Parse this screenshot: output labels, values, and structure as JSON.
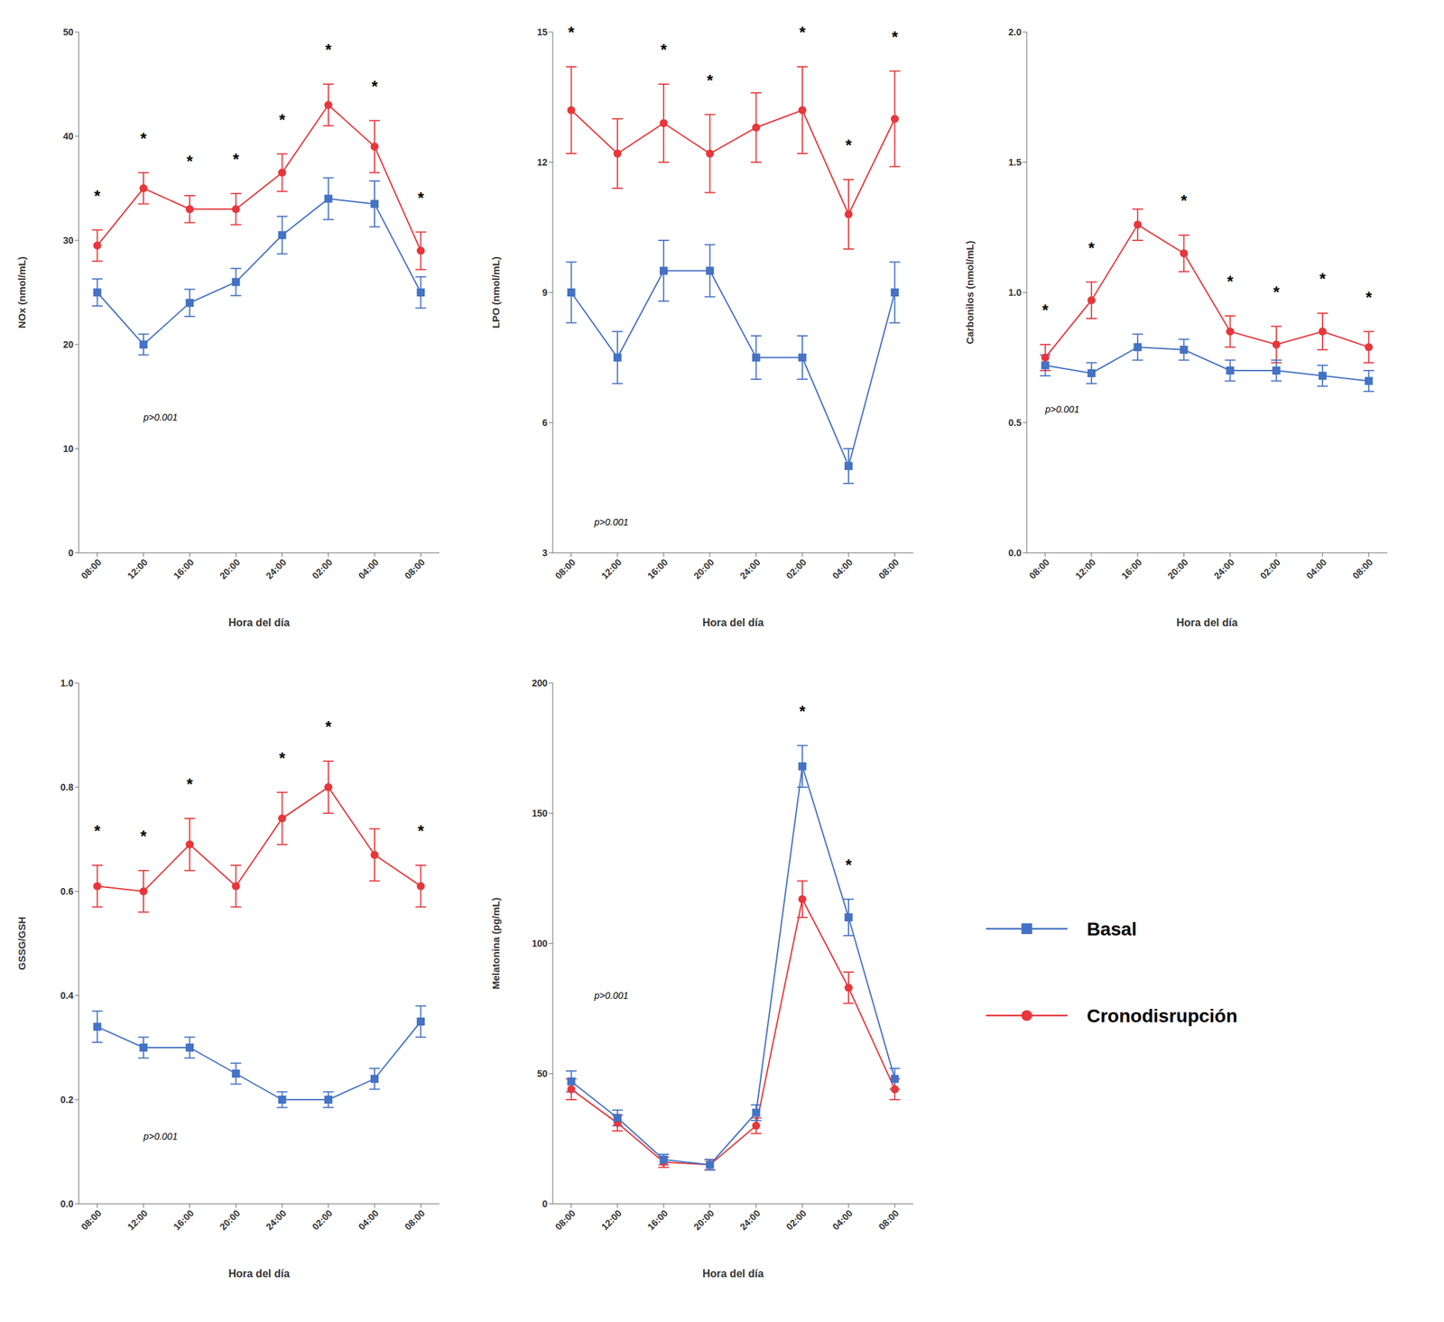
{
  "chart_data": [
    {
      "type": "line",
      "categories": [
        "08:00",
        "12:00",
        "16:00",
        "20:00",
        "24:00",
        "02:00",
        "04:00",
        "08:00"
      ],
      "xlabel": "Hora del día",
      "ylabel": "NOx (nmol/mL)",
      "ylim": [
        0,
        50
      ],
      "yticks": [
        0,
        10,
        20,
        30,
        40,
        50
      ],
      "grid": false,
      "series": [
        {
          "name": "Basal",
          "color": "#4472C4",
          "marker": "square",
          "values": [
            25,
            20,
            24,
            26,
            30.5,
            34,
            33.5,
            25
          ],
          "errors": [
            1.3,
            1.0,
            1.3,
            1.3,
            1.8,
            2.0,
            2.2,
            1.5
          ]
        },
        {
          "name": "Cronodisrupción",
          "color": "#E8363A",
          "marker": "circle",
          "values": [
            29.5,
            35,
            33,
            33,
            36.5,
            43,
            39,
            29
          ],
          "errors": [
            1.5,
            1.5,
            1.3,
            1.5,
            1.8,
            2.0,
            2.5,
            1.8
          ]
        }
      ],
      "annotations": [
        {
          "text": "p>0.001",
          "x": 1.0,
          "y": 13
        },
        {
          "text": "*",
          "x": 0
        },
        {
          "text": "*",
          "x": 1
        },
        {
          "text": "*",
          "x": 2
        },
        {
          "text": "*",
          "x": 3
        },
        {
          "text": "*",
          "x": 4
        },
        {
          "text": "*",
          "x": 5
        },
        {
          "text": "*",
          "x": 6
        },
        {
          "text": "*",
          "x": 7
        }
      ]
    },
    {
      "type": "line",
      "categories": [
        "08:00",
        "12:00",
        "16:00",
        "20:00",
        "24:00",
        "02:00",
        "04:00",
        "08:00"
      ],
      "xlabel": "Hora del día",
      "ylabel": "LPO (nmol/mL)",
      "ylim": [
        3,
        15
      ],
      "yticks": [
        3,
        6,
        9,
        12,
        15
      ],
      "grid": false,
      "series": [
        {
          "name": "Basal",
          "color": "#4472C4",
          "marker": "square",
          "values": [
            9.0,
            7.5,
            9.5,
            9.5,
            7.5,
            7.5,
            5.0,
            9.0
          ],
          "errors": [
            0.7,
            0.6,
            0.7,
            0.6,
            0.5,
            0.5,
            0.4,
            0.7
          ]
        },
        {
          "name": "Cronodisrupción",
          "color": "#E8363A",
          "marker": "circle",
          "values": [
            13.2,
            12.2,
            12.9,
            12.2,
            12.8,
            13.2,
            10.8,
            13.0
          ],
          "errors": [
            1.0,
            0.8,
            0.9,
            0.9,
            0.8,
            1.0,
            0.8,
            1.1
          ]
        }
      ],
      "annotations": [
        {
          "text": "p>0.001",
          "x": 0.5,
          "y": 3.7
        },
        {
          "text": "*",
          "x": 0
        },
        {
          "text": "*",
          "x": 2
        },
        {
          "text": "*",
          "x": 3
        },
        {
          "text": "*",
          "x": 5
        },
        {
          "text": "*",
          "x": 6
        },
        {
          "text": "*",
          "x": 7
        }
      ]
    },
    {
      "type": "line",
      "categories": [
        "08:00",
        "12:00",
        "16:00",
        "20:00",
        "24:00",
        "02:00",
        "04:00",
        "08:00"
      ],
      "xlabel": "Hora del día",
      "ylabel": "Carbonilos (nmol/mL)",
      "ylim": [
        0.0,
        2.0
      ],
      "yticks": [
        {
          "value": 0.0,
          "label": "0.0"
        },
        {
          "value": 0.5,
          "label": "0.5"
        },
        {
          "value": 1.0,
          "label": "1.0"
        },
        {
          "value": 1.5,
          "label": "1.5"
        },
        {
          "value": 2.0,
          "label": "2.0"
        }
      ],
      "grid": false,
      "series": [
        {
          "name": "Basal",
          "color": "#4472C4",
          "marker": "square",
          "values": [
            0.72,
            0.69,
            0.79,
            0.78,
            0.7,
            0.7,
            0.68,
            0.66
          ],
          "errors": [
            0.04,
            0.04,
            0.05,
            0.04,
            0.04,
            0.04,
            0.04,
            0.04
          ]
        },
        {
          "name": "Cronodisrupción",
          "color": "#E8363A",
          "marker": "circle",
          "values": [
            0.75,
            0.97,
            1.26,
            1.15,
            0.85,
            0.8,
            0.85,
            0.79
          ],
          "errors": [
            0.05,
            0.07,
            0.06,
            0.07,
            0.06,
            0.07,
            0.07,
            0.06
          ]
        }
      ],
      "annotations": [
        {
          "text": "p>0.001",
          "x": 0.0,
          "y": 0.55
        },
        {
          "text": "*",
          "x": 0
        },
        {
          "text": "*",
          "x": 1
        },
        {
          "text": "*",
          "x": 3
        },
        {
          "text": "*",
          "x": 4
        },
        {
          "text": "*",
          "x": 5
        },
        {
          "text": "*",
          "x": 6
        },
        {
          "text": "*",
          "x": 7
        }
      ]
    },
    {
      "type": "line",
      "categories": [
        "08:00",
        "12:00",
        "16:00",
        "20:00",
        "24:00",
        "02:00",
        "04:00",
        "08:00"
      ],
      "xlabel": "Hora del día",
      "ylabel": "GSSG/GSH",
      "ylim": [
        0.0,
        1.0
      ],
      "yticks": [
        {
          "value": 0.0,
          "label": "0.0"
        },
        {
          "value": 0.2,
          "label": "0.2"
        },
        {
          "value": 0.4,
          "label": "0.4"
        },
        {
          "value": 0.6,
          "label": "0.6"
        },
        {
          "value": 0.8,
          "label": "0.8"
        },
        {
          "value": 1.0,
          "label": "1.0"
        }
      ],
      "grid": false,
      "series": [
        {
          "name": "Basal",
          "color": "#4472C4",
          "marker": "square",
          "values": [
            0.34,
            0.3,
            0.3,
            0.25,
            0.2,
            0.2,
            0.24,
            0.35
          ],
          "errors": [
            0.03,
            0.02,
            0.02,
            0.02,
            0.015,
            0.015,
            0.02,
            0.03
          ]
        },
        {
          "name": "Cronodisrupción",
          "color": "#E8363A",
          "marker": "circle",
          "values": [
            0.61,
            0.6,
            0.69,
            0.61,
            0.74,
            0.8,
            0.67,
            0.61
          ],
          "errors": [
            0.04,
            0.04,
            0.05,
            0.04,
            0.05,
            0.05,
            0.05,
            0.04
          ]
        }
      ],
      "annotations": [
        {
          "text": "p>0.001",
          "x": 1.0,
          "y": 0.13
        },
        {
          "text": "*",
          "x": 0
        },
        {
          "text": "*",
          "x": 1
        },
        {
          "text": "*",
          "x": 2
        },
        {
          "text": "*",
          "x": 4
        },
        {
          "text": "*",
          "x": 5
        },
        {
          "text": "*",
          "x": 7
        }
      ]
    },
    {
      "type": "line",
      "categories": [
        "08:00",
        "12:00",
        "16:00",
        "20:00",
        "24:00",
        "02:00",
        "04:00",
        "08:00"
      ],
      "xlabel": "Hora del día",
      "ylabel": "Melatonina (pg/mL)",
      "ylim": [
        0,
        200
      ],
      "yticks": [
        0,
        50,
        100,
        150,
        200
      ],
      "grid": false,
      "legend": "right",
      "series": [
        {
          "name": "Basal",
          "color": "#4472C4",
          "marker": "square",
          "values": [
            47,
            33,
            17,
            15,
            35,
            168,
            110,
            48
          ],
          "errors": [
            4,
            3,
            2,
            2,
            3,
            8,
            7,
            4
          ]
        },
        {
          "name": "Cronodisrupción",
          "color": "#E8363A",
          "marker": "circle",
          "values": [
            44,
            31,
            16,
            15,
            30,
            117,
            83,
            44
          ],
          "errors": [
            4,
            3,
            2,
            2,
            3,
            7,
            6,
            4
          ]
        }
      ],
      "annotations": [
        {
          "text": "p>0.001",
          "x": 0.5,
          "y": 80
        },
        {
          "text": "*",
          "x": 5
        },
        {
          "text": "*",
          "x": 6
        }
      ]
    }
  ]
}
